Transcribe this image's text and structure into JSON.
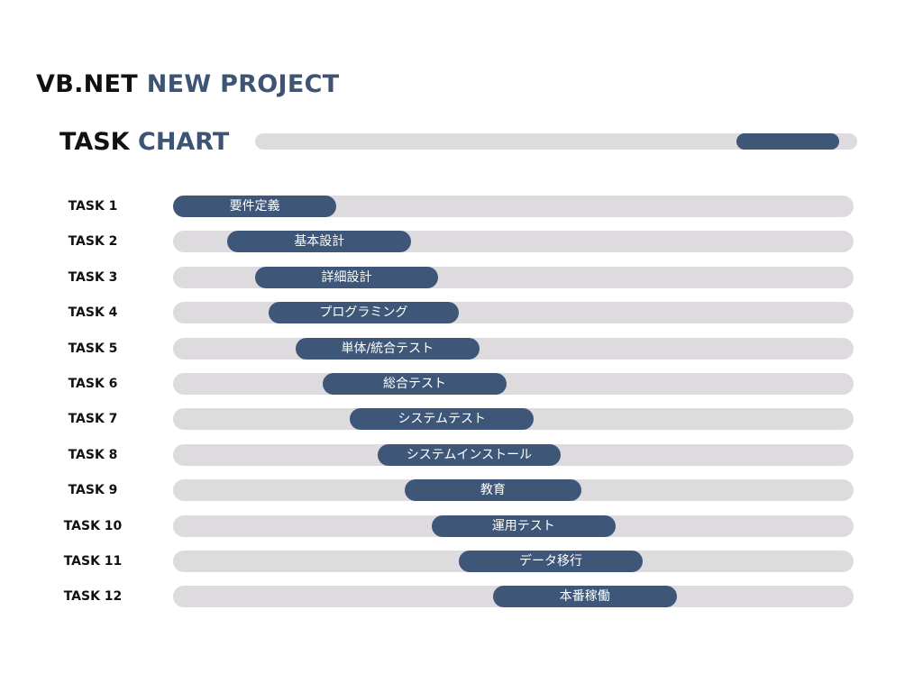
{
  "header": {
    "title_part1": "VB.NET",
    "title_part2": "NEW PROJECT"
  },
  "chart_heading": {
    "part1": "TASK",
    "part2": "CHART"
  },
  "progress": {
    "start_fraction": 0.8,
    "end_fraction": 0.97
  },
  "colors": {
    "bar": "#3e5678",
    "track": "#dedbdf",
    "accent_text": "#3d5475"
  },
  "chart_data": {
    "type": "gantt",
    "title": "TASK CHART",
    "xlim": [
      0,
      100
    ],
    "tasks": [
      {
        "label": "TASK 1",
        "name": "要件定義",
        "start": 0,
        "end": 24
      },
      {
        "label": "TASK 2",
        "name": "基本設計",
        "start": 8,
        "end": 35
      },
      {
        "label": "TASK 3",
        "name": "詳細設計",
        "start": 12,
        "end": 39
      },
      {
        "label": "TASK 4",
        "name": "プログラミング",
        "start": 14,
        "end": 42
      },
      {
        "label": "TASK 5",
        "name": "単体/統合テスト",
        "start": 18,
        "end": 45
      },
      {
        "label": "TASK 6",
        "name": "総合テスト",
        "start": 22,
        "end": 49
      },
      {
        "label": "TASK 7",
        "name": "システムテスト",
        "start": 26,
        "end": 53
      },
      {
        "label": "TASK 8",
        "name": "システムインストール",
        "start": 30,
        "end": 57
      },
      {
        "label": "TASK 9",
        "name": "教育",
        "start": 34,
        "end": 60
      },
      {
        "label": "TASK 10",
        "name": "運用テスト",
        "start": 38,
        "end": 65
      },
      {
        "label": "TASK 11",
        "name": "データ移行",
        "start": 42,
        "end": 69
      },
      {
        "label": "TASK 12",
        "name": "本番稼働",
        "start": 47,
        "end": 74
      }
    ]
  }
}
